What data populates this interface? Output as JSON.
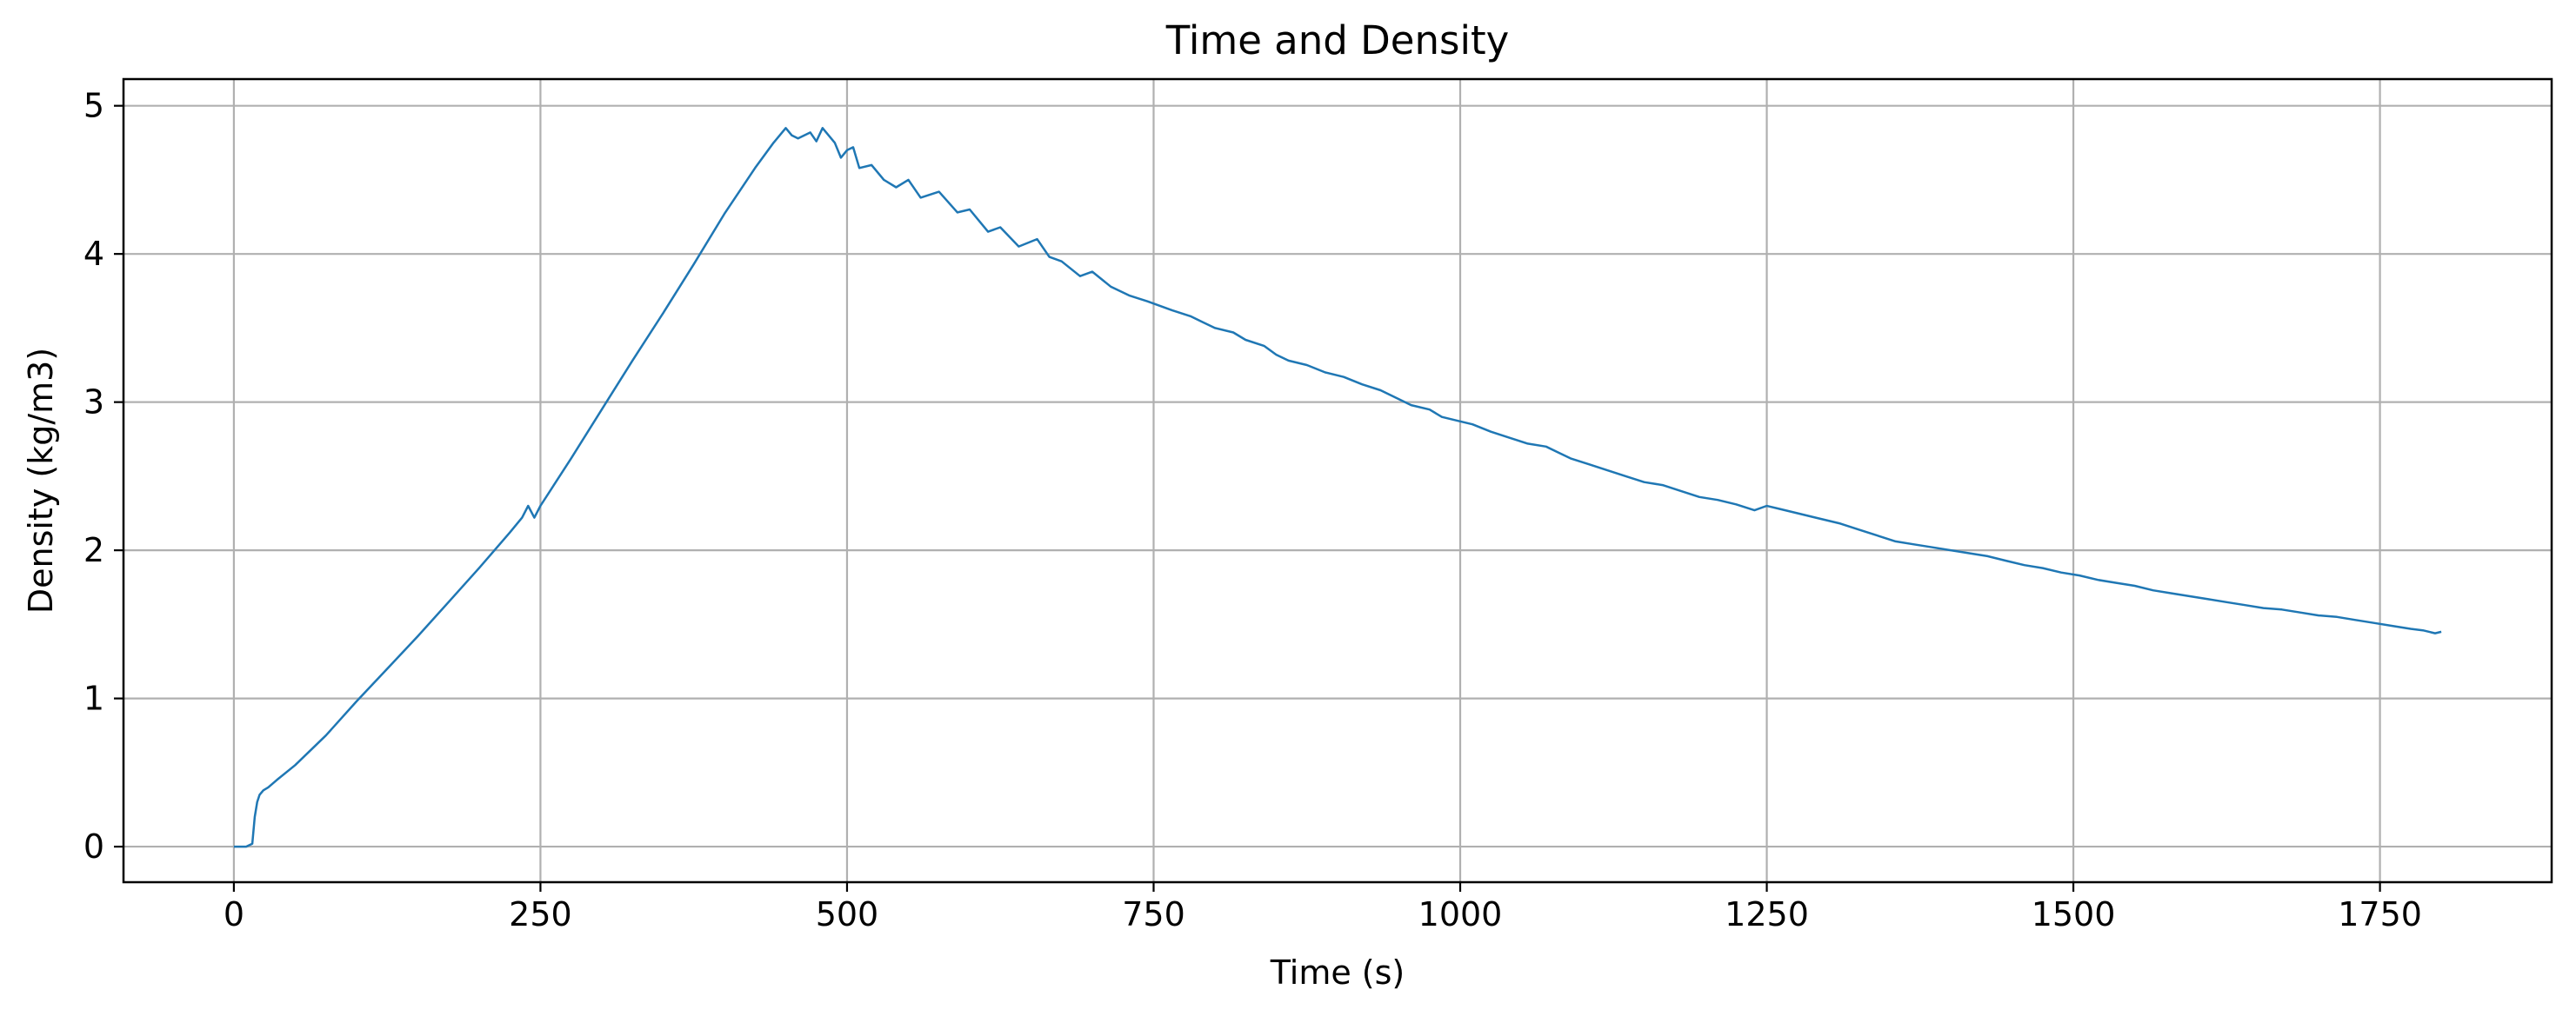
{
  "chart_data": {
    "type": "line",
    "title": "Time and Density",
    "xlabel": "Time (s)",
    "ylabel": "Density (kg/m3)",
    "xlim": [
      -90,
      1890
    ],
    "ylim": [
      -0.24,
      5.18
    ],
    "xticks": [
      0,
      250,
      500,
      750,
      1000,
      1250,
      1500,
      1750
    ],
    "yticks": [
      0,
      1,
      2,
      3,
      4,
      5
    ],
    "grid": true,
    "legend": "none",
    "line_color": "#1f77b4",
    "series": [
      {
        "x": [
          0,
          10,
          15,
          17,
          19,
          21,
          24,
          28,
          35,
          50,
          75,
          100,
          125,
          150,
          175,
          200,
          225,
          235,
          240,
          245,
          250,
          275,
          300,
          325,
          350,
          375,
          400,
          425,
          440,
          450,
          455,
          460,
          470,
          475,
          480,
          490,
          495,
          500,
          505,
          510,
          520,
          530,
          540,
          550,
          560,
          575,
          590,
          600,
          615,
          625,
          640,
          655,
          665,
          675,
          690,
          700,
          715,
          730,
          745,
          755,
          765,
          780,
          790,
          800,
          815,
          825,
          840,
          850,
          860,
          875,
          890,
          905,
          920,
          935,
          950,
          960,
          975,
          985,
          1000,
          1010,
          1025,
          1040,
          1055,
          1070,
          1080,
          1090,
          1105,
          1120,
          1135,
          1150,
          1165,
          1180,
          1195,
          1210,
          1225,
          1240,
          1250,
          1260,
          1275,
          1290,
          1310,
          1325,
          1340,
          1355,
          1370,
          1385,
          1400,
          1415,
          1430,
          1445,
          1460,
          1475,
          1490,
          1505,
          1520,
          1535,
          1550,
          1565,
          1580,
          1595,
          1610,
          1625,
          1640,
          1655,
          1670,
          1685,
          1700,
          1715,
          1730,
          1745,
          1760,
          1775,
          1785,
          1795,
          1800
        ],
        "y": [
          0,
          0,
          0.02,
          0.2,
          0.3,
          0.35,
          0.38,
          0.4,
          0.45,
          0.55,
          0.75,
          0.98,
          1.2,
          1.42,
          1.65,
          1.88,
          2.12,
          2.22,
          2.3,
          2.22,
          2.3,
          2.62,
          2.95,
          3.28,
          3.6,
          3.93,
          4.27,
          4.58,
          4.75,
          4.85,
          4.8,
          4.78,
          4.82,
          4.76,
          4.85,
          4.75,
          4.65,
          4.7,
          4.72,
          4.58,
          4.6,
          4.5,
          4.45,
          4.5,
          4.38,
          4.42,
          4.28,
          4.3,
          4.15,
          4.18,
          4.05,
          4.1,
          3.98,
          3.95,
          3.85,
          3.88,
          3.78,
          3.72,
          3.68,
          3.65,
          3.62,
          3.58,
          3.54,
          3.5,
          3.47,
          3.42,
          3.38,
          3.32,
          3.28,
          3.25,
          3.2,
          3.17,
          3.12,
          3.08,
          3.02,
          2.98,
          2.95,
          2.9,
          2.87,
          2.85,
          2.8,
          2.76,
          2.72,
          2.7,
          2.66,
          2.62,
          2.58,
          2.54,
          2.5,
          2.46,
          2.44,
          2.4,
          2.36,
          2.34,
          2.31,
          2.27,
          2.3,
          2.28,
          2.25,
          2.22,
          2.18,
          2.14,
          2.1,
          2.06,
          2.04,
          2.02,
          2.0,
          1.98,
          1.96,
          1.93,
          1.9,
          1.88,
          1.85,
          1.83,
          1.8,
          1.78,
          1.76,
          1.73,
          1.71,
          1.69,
          1.67,
          1.65,
          1.63,
          1.61,
          1.6,
          1.58,
          1.56,
          1.55,
          1.53,
          1.51,
          1.49,
          1.47,
          1.46,
          1.44,
          1.45
        ]
      }
    ]
  }
}
